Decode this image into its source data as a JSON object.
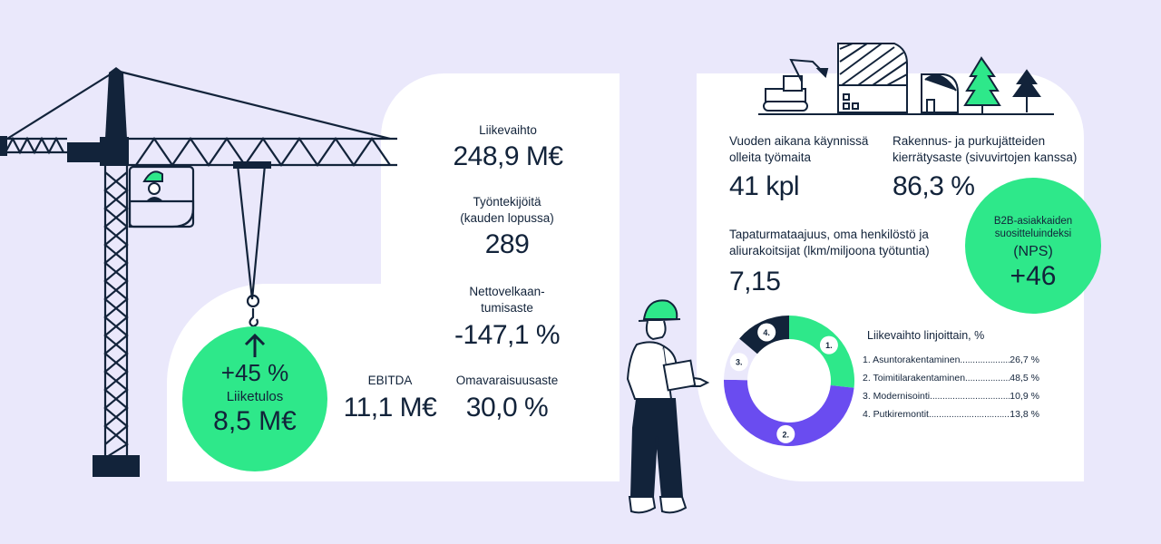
{
  "colors": {
    "background": "#eae8fb",
    "panel": "#ffffff",
    "green": "#2ee88a",
    "purple": "#6a4cf0",
    "dark": "#12233a",
    "lavender": "#eae8fb"
  },
  "left_panel": {
    "liikevaihto_label": "Liikevaihto",
    "liikevaihto_value": "248,9 M€",
    "tyontekijoita_label_1": "Työntekijöitä",
    "tyontekijoita_label_2": "(kauden lopussa)",
    "tyontekijoita_value": "289",
    "nettovelka_label_1": "Nettovelkaan-",
    "nettovelka_label_2": "tumisaste",
    "nettovelka_value": "-147,1 %",
    "ebitda_label": "EBITDA",
    "ebitda_value": "11,1 M€",
    "omavaraisuus_label": "Omavaraisuusaste",
    "omavaraisuus_value": "30,0 %"
  },
  "liiketulos_badge": {
    "growth": "+45 %",
    "label": "Liiketulos",
    "value": "8,5 M€"
  },
  "right_panel": {
    "tyomaat_label_1": "Vuoden aikana käynnissä",
    "tyomaat_label_2": "olleita työmaita",
    "tyomaat_value": "41 kpl",
    "kierratys_label_1": "Rakennus- ja purkujätteiden",
    "kierratys_label_2": "kierrätysaste (sivuvirtojen kanssa)",
    "kierratys_value": "86,3 %",
    "tapaturma_label_1": "Tapaturmataajuus, oma henkilöstö ja",
    "tapaturma_label_2": "aliurakoitsijat (lkm/miljoona työtuntia)",
    "tapaturma_value": "7,15"
  },
  "nps_badge": {
    "label_1": "B2B-asiakkaiden",
    "label_2": "suositteluindeksi",
    "label_3": "(NPS)",
    "value": "+46"
  },
  "donut": {
    "title": "Liikevaihto linjoittain, %",
    "segments": [
      {
        "marker": "1.",
        "name": "1. Asuntorakentaminen",
        "value": 26.7,
        "value_text": "26,7 %",
        "color": "#2ee88a"
      },
      {
        "marker": "2.",
        "name": "2. Toimitilarakentaminen",
        "value": 48.5,
        "value_text": "48,5 %",
        "color": "#6a4cf0"
      },
      {
        "marker": "3.",
        "name": "3. Modernisointi",
        "value": 10.9,
        "value_text": "10,9 %",
        "color": "#eae8fb"
      },
      {
        "marker": "4.",
        "name": "4. Putkiremontit",
        "value": 13.8,
        "value_text": "13,8 %",
        "color": "#12233a"
      }
    ]
  },
  "illustrations": {
    "crane": "tower-crane-illustration",
    "worker": "construction-worker-illustration",
    "skyline": "excavator-buildings-trees-illustration"
  }
}
